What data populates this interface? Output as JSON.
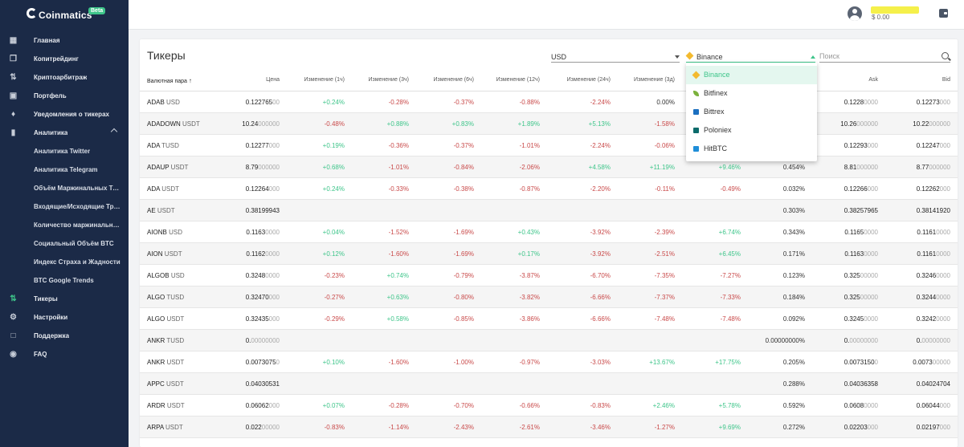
{
  "brand": {
    "name": "Coinmatics",
    "badge": "Beta"
  },
  "sidebar": {
    "items": [
      {
        "label": "Главная",
        "icon": "dashboard-icon",
        "sub": false
      },
      {
        "label": "Копитрейдинг",
        "icon": "copy-icon",
        "sub": false
      },
      {
        "label": "Криптоарбитраж",
        "icon": "arbitrage-icon",
        "sub": false
      },
      {
        "label": "Портфель",
        "icon": "briefcase-icon",
        "sub": false
      },
      {
        "label": "Уведомления о тикерах",
        "icon": "bell-icon",
        "sub": false
      },
      {
        "label": "Аналитика",
        "icon": "bar-chart-icon",
        "sub": false,
        "expandable": true
      },
      {
        "label": "Аналитика Twitter",
        "sub": true
      },
      {
        "label": "Аналитика Telegram",
        "sub": true
      },
      {
        "label": "Объём Маржинальных Торгов",
        "sub": true
      },
      {
        "label": "Входящие/Исходящие Транзакции",
        "sub": true
      },
      {
        "label": "Количество маржинальных позиций",
        "sub": true
      },
      {
        "label": "Социальный Объём BTC",
        "sub": true
      },
      {
        "label": "Индекс Страха и Жадности",
        "sub": true
      },
      {
        "label": "BTC Google Trends",
        "sub": true
      },
      {
        "label": "Тикеры",
        "icon": "swap-icon",
        "sub": false,
        "active": true
      },
      {
        "label": "Настройки",
        "icon": "gear-icon",
        "sub": false
      },
      {
        "label": "Поддержка",
        "icon": "chat-icon",
        "sub": false
      },
      {
        "label": "FAQ",
        "icon": "help-icon",
        "sub": false
      }
    ]
  },
  "header": {
    "balance": "$ 0.00"
  },
  "page": {
    "title": "Тикеры",
    "currency": "USD",
    "exchange": "Binance",
    "search_placeholder": "Поиск"
  },
  "columns": {
    "pair": "Валютная пара",
    "price": "Цена",
    "ch1h": "Изменение (1ч)",
    "ch3h": "Изменение (3ч)",
    "ch6h": "Изменение (6ч)",
    "ch12h": "Изменение (12ч)",
    "ch24h": "Изменение (24ч)",
    "ch3d": "Изменение (3д)",
    "ask": "Ask",
    "bid": "Bid"
  },
  "exchanges": [
    {
      "name": "Binance",
      "icon": "binance-icon",
      "color": "#f3ba2f"
    },
    {
      "name": "Bitfinex",
      "icon": "bitfinex-icon",
      "color": "#7bb13c"
    },
    {
      "name": "Bittrex",
      "icon": "bittrex-icon",
      "color": "#1b6fc0"
    },
    {
      "name": "Poloniex",
      "icon": "poloniex-icon",
      "color": "#0b6b6b"
    },
    {
      "name": "HitBTC",
      "icon": "hitbtc-icon",
      "color": "#1f8ed8"
    }
  ],
  "rows": [
    {
      "base": "ADAB",
      "quote": "USD",
      "price": [
        "0.122765",
        "00"
      ],
      "ch": [
        "+0.24%",
        "-0.28%",
        "-0.37%",
        "-0.88%",
        "-2.24%",
        "0.00%",
        "",
        ""
      ],
      "ask": [
        "0.1228",
        "0000"
      ],
      "bid": [
        "0.12273",
        "000"
      ]
    },
    {
      "base": "ADADOWN",
      "quote": "USDT",
      "price": [
        "10.24",
        "000000"
      ],
      "ch": [
        "-0.48%",
        "+0.88%",
        "+0.83%",
        "+1.89%",
        "+5.13%",
        "-1.58%",
        "",
        ""
      ],
      "ask": [
        "10.26",
        "000000"
      ],
      "bid": [
        "10.22",
        "000000"
      ]
    },
    {
      "base": "ADA",
      "quote": "TUSD",
      "price": [
        "0.12277",
        "000"
      ],
      "ch": [
        "+0.19%",
        "-0.36%",
        "-0.37%",
        "-1.01%",
        "-2.24%",
        "-0.06%",
        "",
        ""
      ],
      "ask": [
        "0.12293",
        "000"
      ],
      "bid": [
        "0.12247",
        "000"
      ]
    },
    {
      "base": "ADAUP",
      "quote": "USDT",
      "price": [
        "8.79",
        "000000"
      ],
      "ch": [
        "+0.68%",
        "-1.01%",
        "-0.84%",
        "-2.06%",
        "+4.58%",
        "+11.19%",
        "+9.46%",
        "0.454%"
      ],
      "ask": [
        "8.81",
        "000000"
      ],
      "bid": [
        "8.77",
        "000000"
      ]
    },
    {
      "base": "ADA",
      "quote": "USDT",
      "price": [
        "0.12264",
        "000"
      ],
      "ch": [
        "+0.24%",
        "-0.33%",
        "-0.38%",
        "-0.87%",
        "-2.20%",
        "-0.11%",
        "-0.49%",
        "0.032%"
      ],
      "ask": [
        "0.12266",
        "000"
      ],
      "bid": [
        "0.12262",
        "000"
      ]
    },
    {
      "base": "AE",
      "quote": "USDT",
      "price": [
        "0.38199943",
        ""
      ],
      "ch": [
        "",
        "",
        "",
        "",
        "",
        "",
        "",
        "0.303%"
      ],
      "ask": [
        "0.38257965",
        ""
      ],
      "bid": [
        "0.38141920",
        ""
      ]
    },
    {
      "base": "AIONB",
      "quote": "USD",
      "price": [
        "0.1163",
        "0000"
      ],
      "ch": [
        "+0.04%",
        "-1.52%",
        "-1.69%",
        "+0.43%",
        "-3.92%",
        "-2.39%",
        "+6.74%",
        "0.343%"
      ],
      "ask": [
        "0.1165",
        "0000"
      ],
      "bid": [
        "0.1161",
        "0000"
      ]
    },
    {
      "base": "AION",
      "quote": "USDT",
      "price": [
        "0.1162",
        "0000"
      ],
      "ch": [
        "+0.12%",
        "-1.60%",
        "-1.69%",
        "+0.17%",
        "-3.92%",
        "-2.51%",
        "+6.45%",
        "0.171%"
      ],
      "ask": [
        "0.1163",
        "0000"
      ],
      "bid": [
        "0.1161",
        "0000"
      ]
    },
    {
      "base": "ALGOB",
      "quote": "USD",
      "price": [
        "0.3248",
        "0000"
      ],
      "ch": [
        "-0.23%",
        "+0.74%",
        "-0.79%",
        "-3.87%",
        "-6.70%",
        "-7.35%",
        "-7.27%",
        "0.123%"
      ],
      "ask": [
        "0.325",
        "00000"
      ],
      "bid": [
        "0.3246",
        "0000"
      ]
    },
    {
      "base": "ALGO",
      "quote": "TUSD",
      "price": [
        "0.32470",
        "000"
      ],
      "ch": [
        "-0.27%",
        "+0.63%",
        "-0.80%",
        "-3.82%",
        "-6.66%",
        "-7.37%",
        "-7.33%",
        "0.184%"
      ],
      "ask": [
        "0.325",
        "00000"
      ],
      "bid": [
        "0.3244",
        "0000"
      ]
    },
    {
      "base": "ALGO",
      "quote": "USDT",
      "price": [
        "0.32435",
        "000"
      ],
      "ch": [
        "-0.29%",
        "+0.58%",
        "-0.85%",
        "-3.86%",
        "-6.66%",
        "-7.48%",
        "-7.48%",
        "0.092%"
      ],
      "ask": [
        "0.3245",
        "0000"
      ],
      "bid": [
        "0.3242",
        "0000"
      ]
    },
    {
      "base": "ANKR",
      "quote": "TUSD",
      "price": [
        "0.",
        "00000000"
      ],
      "ch": [
        "",
        "",
        "",
        "",
        "",
        "",
        "",
        "0.00000000%"
      ],
      "ask": [
        "0.",
        "00000000"
      ],
      "bid": [
        "0.",
        "00000000"
      ]
    },
    {
      "base": "ANKR",
      "quote": "USDT",
      "price": [
        "0.0073075",
        "0"
      ],
      "ch": [
        "+0.10%",
        "-1.60%",
        "-1.00%",
        "-0.97%",
        "-3.03%",
        "+13.67%",
        "+17.75%",
        "0.205%"
      ],
      "ask": [
        "0.0073150",
        "0"
      ],
      "bid": [
        "0.0073",
        "00000"
      ]
    },
    {
      "base": "APPC",
      "quote": "USDT",
      "price": [
        "0.04030531",
        ""
      ],
      "ch": [
        "",
        "",
        "",
        "",
        "",
        "",
        "",
        "0.288%"
      ],
      "ask": [
        "0.04036358",
        ""
      ],
      "bid": [
        "0.04024704",
        ""
      ]
    },
    {
      "base": "ARDR",
      "quote": "USDT",
      "price": [
        "0.06062",
        "000"
      ],
      "ch": [
        "+0.07%",
        "-0.28%",
        "-0.70%",
        "-0.66%",
        "-0.83%",
        "+2.46%",
        "+5.78%",
        "0.592%"
      ],
      "ask": [
        "0.0608",
        "0000"
      ],
      "bid": [
        "0.06044",
        "000"
      ]
    },
    {
      "base": "ARPA",
      "quote": "USDT",
      "price": [
        "0.022",
        "00000"
      ],
      "ch": [
        "-0.83%",
        "-1.14%",
        "-2.43%",
        "-2.61%",
        "-3.46%",
        "-1.27%",
        "+9.69%",
        "0.272%"
      ],
      "ask": [
        "0.02203",
        "000"
      ],
      "bid": [
        "0.02197",
        "000"
      ]
    }
  ]
}
